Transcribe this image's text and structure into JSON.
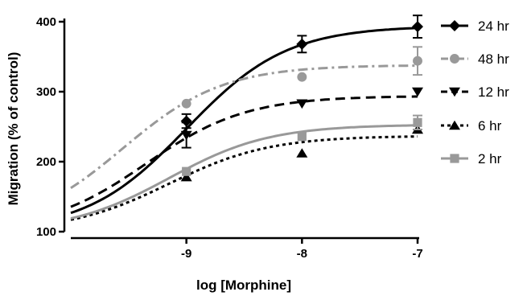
{
  "chart_data": {
    "type": "line",
    "xlabel": "log [Morphine]",
    "ylabel": "Migration (% of control)",
    "xlim": [
      -10,
      -7
    ],
    "ylim": [
      100,
      400
    ],
    "x_ticks": [
      -9,
      -8,
      -7
    ],
    "x_tick_labels": [
      "-9",
      "-8",
      "-7"
    ],
    "y_ticks": [
      100,
      200,
      300,
      400
    ],
    "y_tick_labels": [
      "100",
      "200",
      "300",
      "400"
    ],
    "grid": false,
    "legend_position": "right",
    "series": [
      {
        "name": "24 hr",
        "color": "#000000",
        "dash": "solid",
        "marker": "diamond",
        "points": [
          {
            "x": -9,
            "y": 258,
            "err": 10
          },
          {
            "x": -8,
            "y": 368,
            "err": 12
          },
          {
            "x": -7,
            "y": 393,
            "err": 16
          }
        ],
        "fit": {
          "bottom": 100,
          "top": 394,
          "logEC50": -9.0,
          "hill": 1.0
        }
      },
      {
        "name": "48 hr",
        "color": "#999999",
        "dash": "dashdot",
        "marker": "circle",
        "points": [
          {
            "x": -9,
            "y": 283,
            "err": 0
          },
          {
            "x": -8,
            "y": 321,
            "err": 0
          },
          {
            "x": -7,
            "y": 344,
            "err": 20
          }
        ],
        "fit": {
          "bottom": 100,
          "top": 338,
          "logEC50": -9.55,
          "hill": 1.0
        }
      },
      {
        "name": "12 hr",
        "color": "#000000",
        "dash": "dashed",
        "marker": "triangle-down",
        "points": [
          {
            "x": -9,
            "y": 238,
            "err": 18
          },
          {
            "x": -8,
            "y": 283,
            "err": 0
          },
          {
            "x": -7,
            "y": 300,
            "err": 0
          }
        ],
        "fit": {
          "bottom": 100,
          "top": 294,
          "logEC50": -9.35,
          "hill": 1.0
        }
      },
      {
        "name": "6 hr",
        "color": "#000000",
        "dash": "dotted",
        "marker": "triangle-up",
        "points": [
          {
            "x": -9,
            "y": 178,
            "err": 0
          },
          {
            "x": -8,
            "y": 212,
            "err": 0
          },
          {
            "x": -7,
            "y": 246,
            "err": 0
          }
        ],
        "fit": {
          "bottom": 100,
          "top": 237,
          "logEC50": -9.15,
          "hill": 1.0
        }
      },
      {
        "name": "2 hr",
        "color": "#999999",
        "dash": "solid",
        "marker": "square",
        "points": [
          {
            "x": -9,
            "y": 186,
            "err": 0
          },
          {
            "x": -8,
            "y": 236,
            "err": 0
          },
          {
            "x": -7,
            "y": 256,
            "err": 10
          }
        ],
        "fit": {
          "bottom": 100,
          "top": 253,
          "logEC50": -9.15,
          "hill": 1.0
        }
      }
    ]
  }
}
